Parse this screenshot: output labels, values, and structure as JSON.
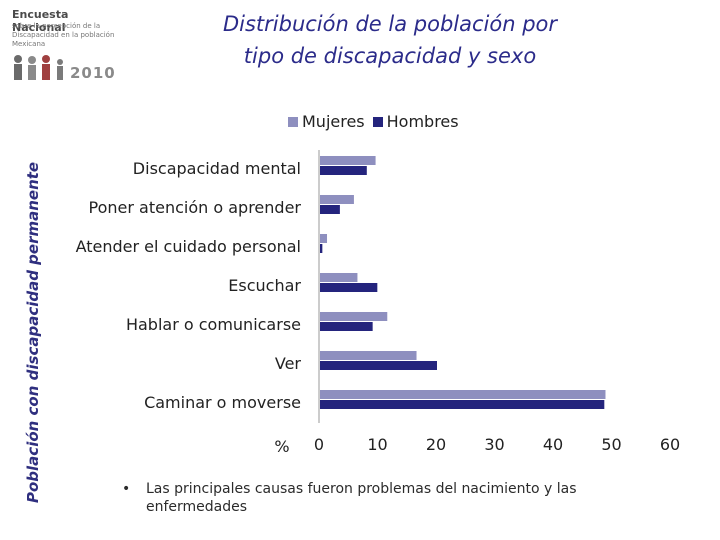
{
  "logo": {
    "line1": "Encuesta Nacional",
    "line2": "sobre la percepción de la Discapacidad en la población Mexicana",
    "year": "2010"
  },
  "side_label": "Población con discapacidad permanente",
  "title_line1": "Distribución de la población por",
  "title_line2": "tipo de discapacidad y sexo",
  "bullet_text": "Las principales causas fueron problemas del nacimiento y las enfermedades",
  "colors": {
    "mujeres": "#8e8fbf",
    "hombres": "#24247d"
  },
  "chart_data": {
    "type": "bar",
    "orientation": "horizontal",
    "categories": [
      "Discapacidad mental",
      "Poner atención o aprender",
      "Atender el cuidado personal",
      "Escuchar",
      "Hablar o comunicarse",
      "Ver",
      "Caminar o moverse"
    ],
    "series": [
      {
        "name": "Mujeres",
        "values": [
          9.5,
          5.8,
          1.2,
          6.4,
          11.5,
          16.5,
          48.8
        ]
      },
      {
        "name": "Hombres",
        "values": [
          8.0,
          3.4,
          0.4,
          9.8,
          9.0,
          20.0,
          48.6
        ]
      }
    ],
    "xlabel": "%",
    "xticks": [
      "0",
      "10",
      "20",
      "30",
      "40",
      "50",
      "60"
    ],
    "xlim": [
      0,
      60
    ],
    "legend": "top",
    "grid": false
  }
}
